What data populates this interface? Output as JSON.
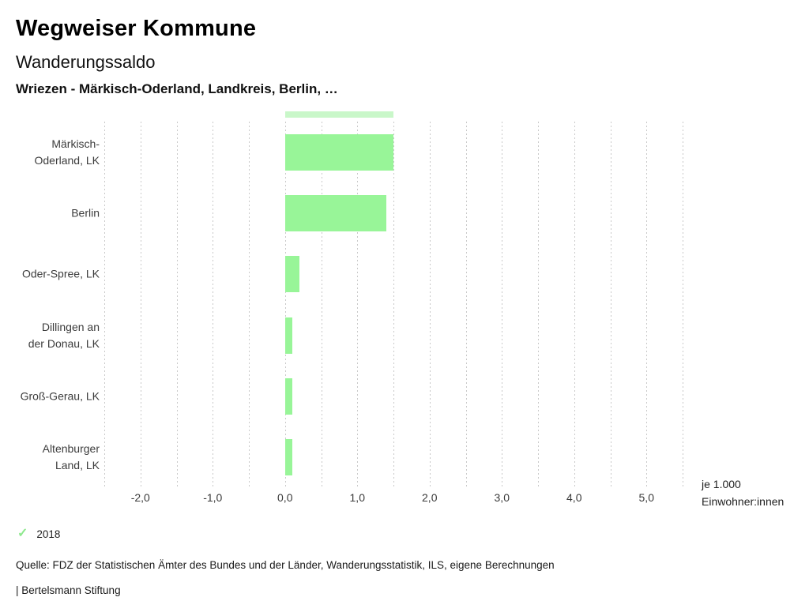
{
  "header": {
    "title": "Wegweiser Kommune",
    "subtitle": "Wanderungssaldo",
    "context": "Wriezen - Märkisch-Oderland, Landkreis, Berlin, …"
  },
  "chart_data": {
    "type": "bar",
    "orientation": "horizontal",
    "title": "Wanderungssaldo",
    "subject": "Wriezen - Märkisch-Oderland, Landkreis, Berlin, …",
    "categories": [
      "Märkisch-Oderland, LK",
      "Berlin",
      "Oder-Spree, LK",
      "Dillingen an der Donau, LK",
      "Groß-Gerau, LK",
      "Altenburger Land, LK"
    ],
    "category_label_lines": [
      [
        "Märkisch-",
        "Oderland, LK"
      ],
      [
        "Berlin"
      ],
      [
        "Oder-Spree, LK"
      ],
      [
        "Dillingen an",
        "der Donau, LK"
      ],
      [
        "Groß-Gerau, LK"
      ],
      [
        "Altenburger",
        "Land, LK"
      ]
    ],
    "series": [
      {
        "name": "2018",
        "values": [
          1.5,
          1.4,
          0.2,
          0.1,
          0.1,
          0.1
        ]
      }
    ],
    "xlim": [
      -2.5,
      5.5
    ],
    "gridline_step": 0.5,
    "x_major_ticks": [
      -2,
      -1,
      0,
      1,
      2,
      3,
      4,
      5
    ],
    "x_tick_labels": [
      "-2,0",
      "-1,0",
      "0,0",
      "1,0",
      "2,0",
      "3,0",
      "4,0",
      "5,0"
    ],
    "xlabel_line1": "je 1.000",
    "xlabel_line2": "Einwohner:innen",
    "bar_color": "#98f598",
    "gridline_color": "#c9c9c9",
    "grid": true,
    "legend_position": "bottom-left",
    "scrollbar_preview": {
      "value": 1.5,
      "color": "#c9f7c9"
    }
  },
  "legend": {
    "marker": "check-icon",
    "label": "2018",
    "color": "#8fe98f"
  },
  "footer": {
    "source": "Quelle: FDZ der Statistischen Ämter des Bundes und der Länder, Wanderungsstatistik, ILS, eigene Berechnungen",
    "attribution": "| Bertelsmann Stiftung"
  }
}
